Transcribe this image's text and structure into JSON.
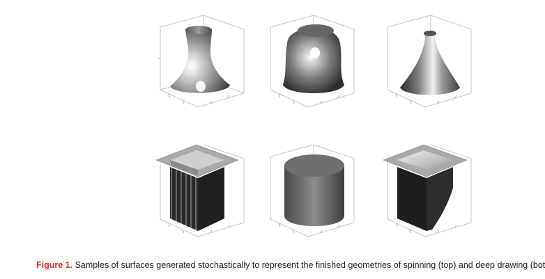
{
  "caption": {
    "label": "Figure 1.",
    "text": " Samples of surfaces generated stochastically to represent the finished geometries of spinning (top) and deep drawing (bottom)."
  },
  "colors": {
    "caption_label": "#d6262f",
    "surface_light": "#d9d9d9",
    "surface_dark": "#2e2e2e",
    "axis_box": "#b8b8b8"
  },
  "panels": [
    {
      "name": "spinning-vase-surface",
      "process": "spinning",
      "row": "top",
      "shape": "vase"
    },
    {
      "name": "spinning-dome-surface",
      "process": "spinning",
      "row": "top",
      "shape": "dome"
    },
    {
      "name": "spinning-cone-surface",
      "process": "spinning",
      "row": "top",
      "shape": "cone"
    },
    {
      "name": "deep-drawing-corrugated-box-surface",
      "process": "deep drawing",
      "row": "bottom",
      "shape": "corrugated-box"
    },
    {
      "name": "deep-drawing-cylinder-surface",
      "process": "deep drawing",
      "row": "bottom",
      "shape": "cylinder"
    },
    {
      "name": "deep-drawing-skewed-box-surface",
      "process": "deep drawing",
      "row": "bottom",
      "shape": "skewed-box"
    }
  ]
}
